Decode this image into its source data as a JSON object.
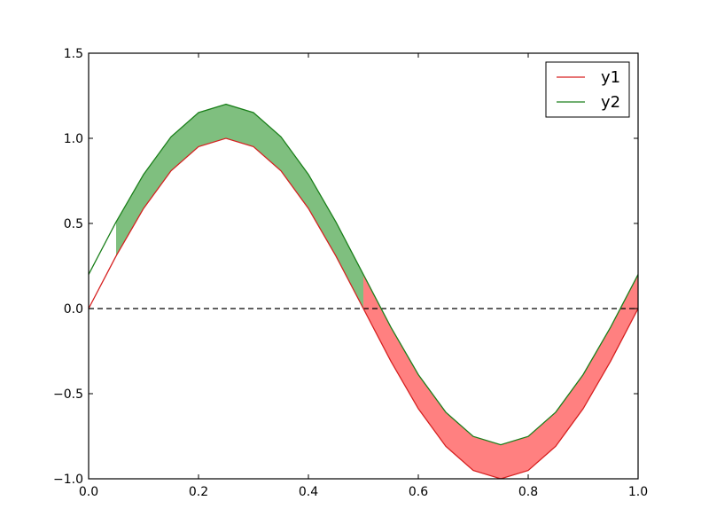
{
  "chart_data": {
    "type": "line",
    "title": "",
    "xlabel": "",
    "ylabel": "",
    "xlim": [
      0.0,
      1.0
    ],
    "ylim": [
      -1.0,
      1.5
    ],
    "grid": false,
    "legend_placement": "top-right",
    "x_ticks": [
      "0.0",
      "0.2",
      "0.4",
      "0.6",
      "0.8",
      "1.0"
    ],
    "y_ticks": [
      "1.5",
      "1.0",
      "0.5",
      "0.0",
      "−0.5",
      "−1.0"
    ],
    "x": [
      0.0,
      0.05,
      0.1,
      0.15,
      0.2,
      0.25,
      0.3,
      0.35,
      0.4,
      0.45,
      0.5,
      0.55,
      0.6,
      0.65,
      0.7,
      0.75,
      0.8,
      0.85,
      0.9,
      0.95,
      1.0
    ],
    "series": [
      {
        "name": "y1",
        "color": "#d62020",
        "values": [
          0.0,
          0.309,
          0.588,
          0.809,
          0.951,
          1.0,
          0.951,
          0.809,
          0.588,
          0.309,
          0.0,
          -0.309,
          -0.588,
          -0.809,
          -0.951,
          -1.0,
          -0.951,
          -0.809,
          -0.588,
          -0.309,
          0.0
        ]
      },
      {
        "name": "y2",
        "color": "#1a7f1a",
        "values": [
          0.2,
          0.509,
          0.788,
          1.009,
          1.151,
          1.2,
          1.151,
          1.009,
          0.788,
          0.509,
          0.2,
          -0.109,
          -0.388,
          -0.609,
          -0.751,
          -0.8,
          -0.751,
          -0.609,
          -0.388,
          -0.109,
          0.2
        ]
      }
    ],
    "reference_line": {
      "y": 0.0,
      "style": "dashed",
      "color": "#000000"
    },
    "fills": [
      {
        "between": [
          "y1",
          "y2"
        ],
        "x_range": [
          0.05,
          0.5
        ],
        "color": "#7fbf7f"
      },
      {
        "between": [
          "y1",
          "y2"
        ],
        "x_range": [
          0.5,
          1.0
        ],
        "color": "#ff8080"
      }
    ],
    "colors": {
      "axis": "#000000",
      "fill_green": "#7fbf7f",
      "fill_red": "#ff8080"
    }
  }
}
